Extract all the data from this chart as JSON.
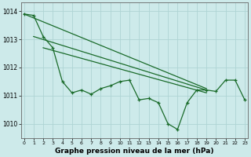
{
  "xlabel": "Graphe pression niveau de la mer (hPa)",
  "ylim": [
    1009.5,
    1014.3
  ],
  "xlim": [
    -0.3,
    23.3
  ],
  "yticks": [
    1010,
    1011,
    1012,
    1013,
    1014
  ],
  "xticks": [
    0,
    1,
    2,
    3,
    4,
    5,
    6,
    7,
    8,
    9,
    10,
    11,
    12,
    13,
    14,
    15,
    16,
    17,
    18,
    19,
    20,
    21,
    22,
    23
  ],
  "background_color": "#cdeaea",
  "grid_color": "#aed4d4",
  "line_color": "#1a6b2a",
  "main_data": [
    1013.9,
    1013.85,
    1013.1,
    1012.7,
    1011.5,
    1011.1,
    1011.2,
    1011.05,
    1011.25,
    1011.35,
    1011.5,
    1011.55,
    1010.85,
    1010.9,
    1010.75,
    1010.0,
    1009.8,
    1010.75,
    1011.2,
    1011.2,
    1011.15,
    1011.55,
    1011.55,
    1010.85
  ],
  "trend_lines": [
    {
      "x0": 0,
      "y0": 1013.9,
      "x1": 19,
      "y1": 1011.25
    },
    {
      "x0": 1,
      "y0": 1013.1,
      "x1": 19,
      "y1": 1011.2
    },
    {
      "x0": 2,
      "y0": 1012.7,
      "x1": 19,
      "y1": 1011.1
    }
  ]
}
